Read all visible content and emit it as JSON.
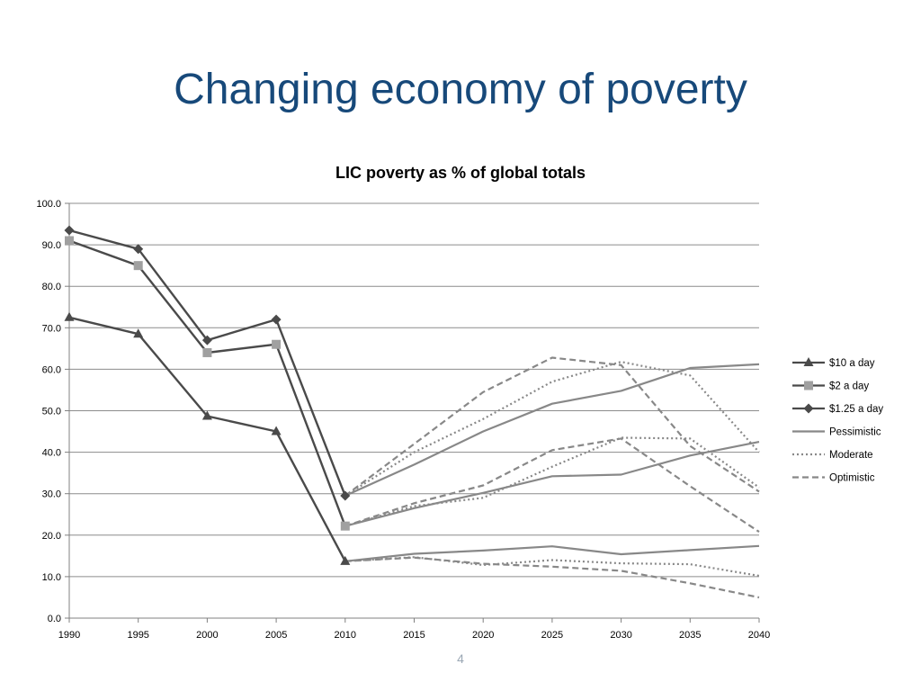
{
  "slide": {
    "title": "Changing economy of poverty",
    "page_number": "4"
  },
  "chart_data": {
    "type": "line",
    "title": "LIC poverty as % of global totals",
    "xlabel": "",
    "ylabel": "",
    "ylim": [
      0,
      100
    ],
    "y_ticks": [
      "0.0",
      "10.0",
      "20.0",
      "30.0",
      "40.0",
      "50.0",
      "60.0",
      "70.0",
      "80.0",
      "90.0",
      "100.0"
    ],
    "x_ticks": [
      "1990",
      "1995",
      "2000",
      "2005",
      "2010",
      "2015",
      "2020",
      "2025",
      "2030",
      "2035",
      "2040"
    ],
    "grid": "horizontal",
    "legend_position": "right",
    "legend": [
      {
        "label": "$10 a day",
        "style": "solid",
        "marker": "triangle",
        "color": "#4a4a4a"
      },
      {
        "label": "$2 a day",
        "style": "solid",
        "marker": "square",
        "color": "#4a4a4a",
        "marker_color": "#a0a0a0"
      },
      {
        "label": "$1.25 a day",
        "style": "solid",
        "marker": "diamond",
        "color": "#4a4a4a"
      },
      {
        "label": "Pessimistic",
        "style": "solid",
        "marker": "none",
        "color": "#888888"
      },
      {
        "label": "Moderate",
        "style": "dotted",
        "marker": "none",
        "color": "#888888"
      },
      {
        "label": "Optimistic",
        "style": "dashed",
        "marker": "none",
        "color": "#888888"
      }
    ],
    "series": [
      {
        "group": "historical",
        "name": "$10 a day",
        "style": "solid",
        "marker": "triangle",
        "color": "#4a4a4a",
        "x": [
          1990,
          1995,
          2000,
          2005,
          2010
        ],
        "values": [
          72.5,
          68.5,
          48.7,
          45.0,
          13.7
        ]
      },
      {
        "group": "historical",
        "name": "$2 a day",
        "style": "solid",
        "marker": "square",
        "color": "#4a4a4a",
        "marker_color": "#a0a0a0",
        "x": [
          1990,
          1995,
          2000,
          2005,
          2010
        ],
        "values": [
          91.0,
          85.0,
          64.0,
          66.0,
          22.2
        ]
      },
      {
        "group": "historical",
        "name": "$1.25 a day",
        "style": "solid",
        "marker": "diamond",
        "color": "#4a4a4a",
        "x": [
          1990,
          1995,
          2000,
          2005,
          2010
        ],
        "values": [
          93.5,
          89.0,
          67.0,
          72.0,
          29.5
        ]
      },
      {
        "group": "$1.25 a day",
        "name": "Pessimistic",
        "style": "solid",
        "color": "#888888",
        "x": [
          2010,
          2015,
          2020,
          2025,
          2030,
          2035,
          2040
        ],
        "values": [
          29.5,
          37.0,
          45.0,
          51.7,
          54.8,
          60.3,
          61.2
        ]
      },
      {
        "group": "$1.25 a day",
        "name": "Moderate",
        "style": "dotted",
        "color": "#888888",
        "x": [
          2010,
          2015,
          2020,
          2025,
          2030,
          2035,
          2040
        ],
        "values": [
          29.5,
          40.0,
          48.0,
          57.0,
          61.8,
          58.5,
          40.0
        ]
      },
      {
        "group": "$1.25 a day",
        "name": "Optimistic",
        "style": "dashed",
        "color": "#888888",
        "x": [
          2010,
          2015,
          2020,
          2025,
          2030,
          2035,
          2040
        ],
        "values": [
          29.5,
          42.0,
          54.5,
          62.8,
          61.0,
          41.5,
          30.5
        ]
      },
      {
        "group": "$2 a day",
        "name": "Pessimistic",
        "style": "solid",
        "color": "#888888",
        "x": [
          2010,
          2015,
          2020,
          2025,
          2030,
          2035,
          2040
        ],
        "values": [
          22.2,
          26.5,
          30.2,
          34.2,
          34.6,
          39.2,
          42.5
        ]
      },
      {
        "group": "$2 a day",
        "name": "Moderate",
        "style": "dotted",
        "color": "#888888",
        "x": [
          2010,
          2015,
          2020,
          2025,
          2030,
          2035,
          2040
        ],
        "values": [
          22.2,
          27.0,
          29.0,
          36.5,
          43.5,
          43.3,
          31.5
        ]
      },
      {
        "group": "$2 a day",
        "name": "Optimistic",
        "style": "dashed",
        "color": "#888888",
        "x": [
          2010,
          2015,
          2020,
          2025,
          2030,
          2035,
          2040
        ],
        "values": [
          22.2,
          27.7,
          32.0,
          40.5,
          43.3,
          31.8,
          20.8
        ]
      },
      {
        "group": "$10 a day",
        "name": "Pessimistic",
        "style": "solid",
        "color": "#888888",
        "x": [
          2010,
          2015,
          2020,
          2025,
          2030,
          2035,
          2040
        ],
        "values": [
          13.7,
          15.5,
          16.3,
          17.3,
          15.4,
          16.4,
          17.4
        ]
      },
      {
        "group": "$10 a day",
        "name": "Moderate",
        "style": "dotted",
        "color": "#888888",
        "x": [
          2010,
          2015,
          2020,
          2025,
          2030,
          2035,
          2040
        ],
        "values": [
          13.7,
          14.7,
          12.8,
          14.0,
          13.2,
          13.0,
          10.2
        ]
      },
      {
        "group": "$10 a day",
        "name": "Optimistic",
        "style": "dashed",
        "color": "#888888",
        "x": [
          2010,
          2015,
          2020,
          2025,
          2030,
          2035,
          2040
        ],
        "values": [
          13.7,
          14.6,
          13.1,
          12.4,
          11.4,
          8.4,
          5.0
        ]
      }
    ]
  }
}
